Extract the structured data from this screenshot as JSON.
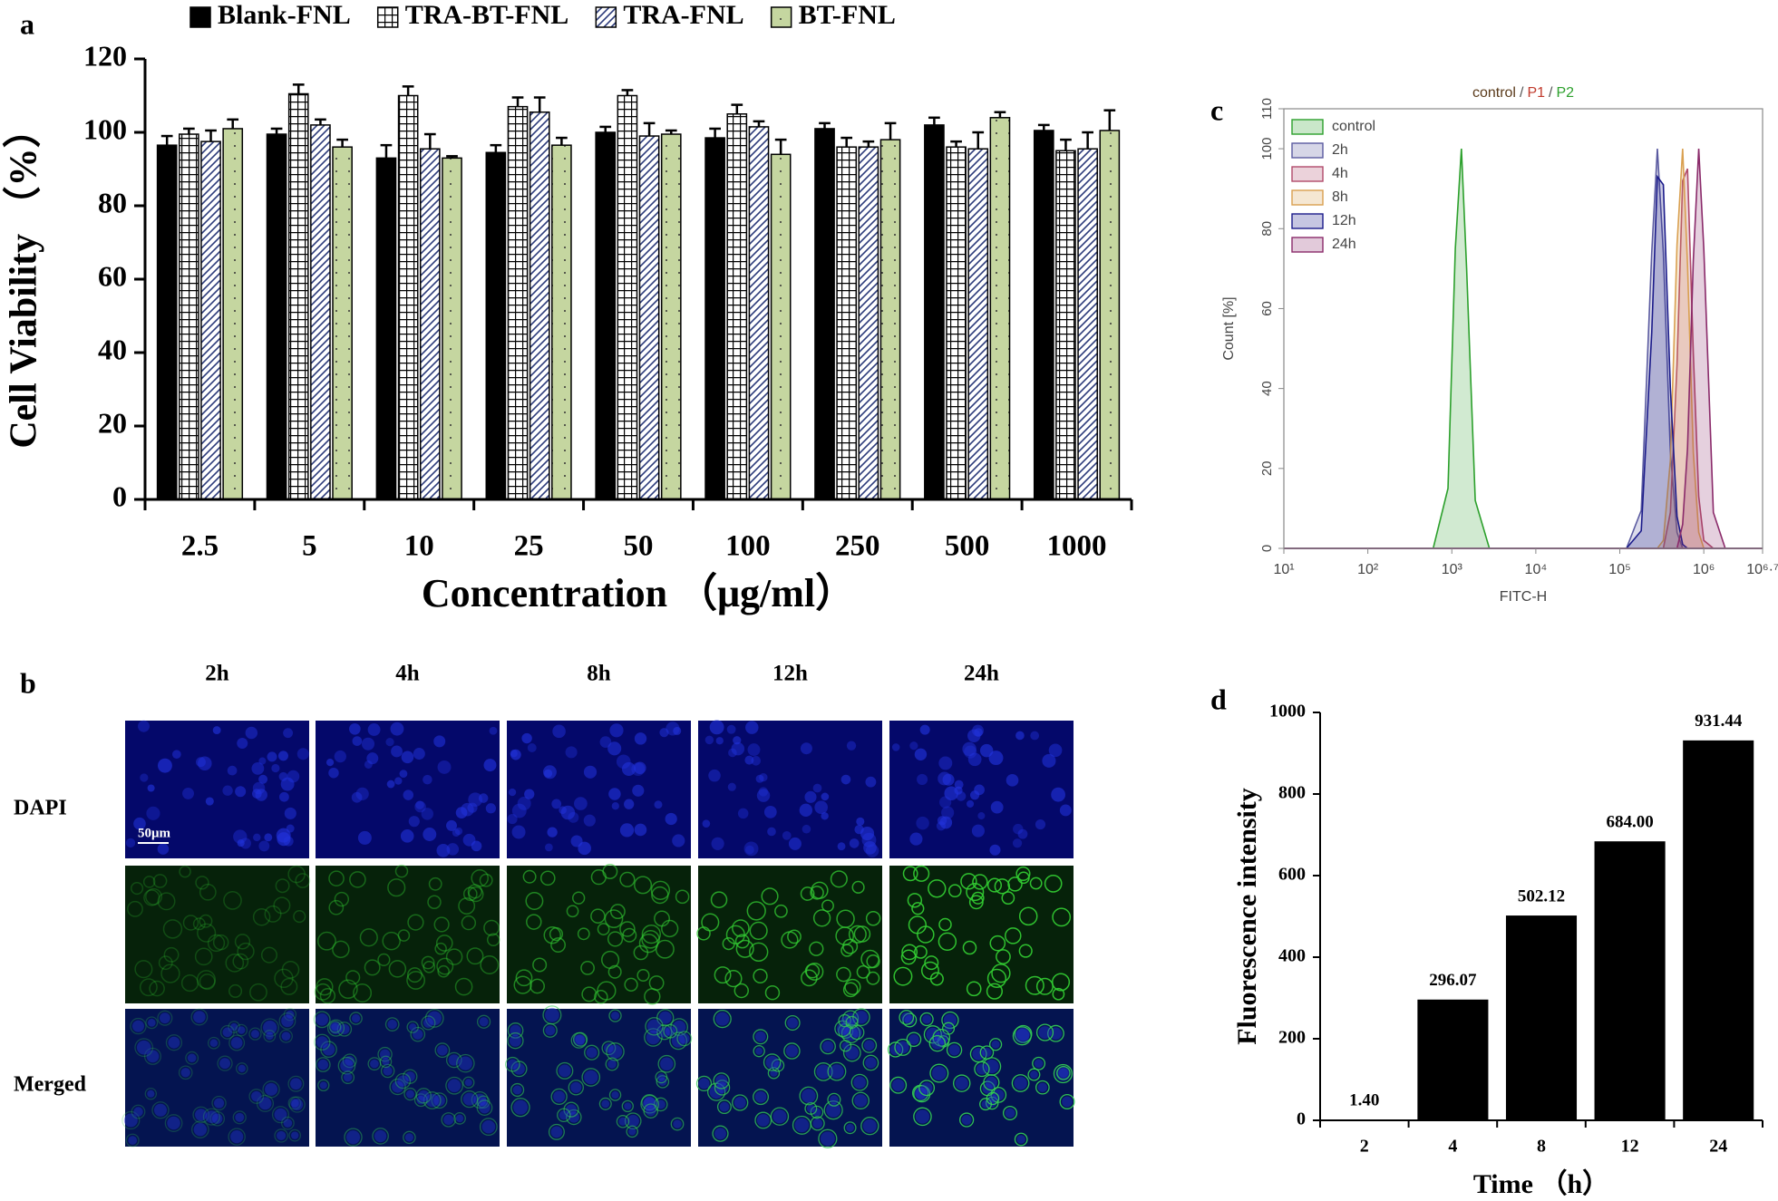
{
  "chart_data": [
    {
      "panel": "a",
      "type": "bar",
      "categories": [
        "2.5",
        "5",
        "10",
        "25",
        "50",
        "100",
        "250",
        "500",
        "1000"
      ],
      "x_label": "Concentration （μg/ml）",
      "y_label": "Cell Viability （%）",
      "ylim": [
        0,
        120
      ],
      "yticks": [
        0,
        20,
        40,
        60,
        80,
        100,
        120
      ],
      "legend": "top",
      "series": [
        {
          "name": "Blank-FNL",
          "color": "#000000",
          "pattern": "solid",
          "values": [
            96.5,
            99.5,
            93,
            94.5,
            100,
            98.5,
            101,
            102,
            100.5
          ],
          "errors": [
            2.5,
            1.5,
            3.5,
            2,
            1.5,
            2.5,
            1.5,
            2,
            1.5
          ]
        },
        {
          "name": "TRA-BT-FNL",
          "color": "#000000",
          "pattern": "grid",
          "values": [
            99.5,
            110.5,
            110,
            107,
            110,
            105,
            96,
            96,
            95
          ],
          "errors": [
            1.5,
            2.5,
            2.5,
            2.5,
            1.5,
            2.5,
            2.5,
            1.5,
            3
          ]
        },
        {
          "name": "TRA-FNL",
          "color": "#2b3a7a",
          "pattern": "hatch",
          "values": [
            97.5,
            102,
            95.5,
            105.5,
            99,
            101.5,
            96,
            95.5,
            95.5
          ],
          "errors": [
            3,
            1.5,
            4,
            4,
            3.5,
            1.5,
            1.5,
            4.5,
            4.5
          ]
        },
        {
          "name": "BT-FNL",
          "color": "#c5d6a0",
          "pattern": "dots",
          "values": [
            101,
            96,
            93,
            96.5,
            99.5,
            94,
            98,
            104,
            100.5
          ],
          "errors": [
            2.5,
            2,
            0.5,
            2,
            1,
            4,
            4.5,
            1.5,
            5.5
          ]
        }
      ]
    },
    {
      "panel": "c",
      "type": "line",
      "title": [
        "control",
        "P1",
        "P2"
      ],
      "title_colors": [
        "#5a3a1a",
        "#c0392b",
        "#2ca02c"
      ],
      "title_separator": "/",
      "x_label": "FITC-H",
      "y_label": "Count [%]",
      "x_log": true,
      "xlim": [
        10,
        5011872
      ],
      "xticks": [
        {
          "value": 10,
          "label": "10¹"
        },
        {
          "value": 100,
          "label": "10²"
        },
        {
          "value": 1000,
          "label": "10³"
        },
        {
          "value": 10000,
          "label": "10⁴"
        },
        {
          "value": 100000,
          "label": "10⁵"
        },
        {
          "value": 1000000,
          "label": "10⁶"
        },
        {
          "value": 5011872,
          "label": "10⁶·⁷"
        }
      ],
      "ylim": [
        0,
        110
      ],
      "yticks": [
        0,
        20,
        40,
        60,
        80,
        100,
        110
      ],
      "legend": "upper left",
      "x": [
        10,
        600,
        900,
        1100,
        1300,
        1500,
        1900,
        2800,
        120000,
        180000,
        240000,
        280000,
        330000,
        400000,
        480000,
        560000,
        640000,
        750000,
        870000,
        1000000,
        1300000,
        1800000,
        5011872
      ],
      "series": [
        {
          "name": "control",
          "color": "#2ca02c",
          "values": [
            0,
            0,
            15,
            75,
            100,
            70,
            12,
            0,
            0,
            0,
            0,
            0,
            0,
            0,
            0,
            0,
            0,
            0,
            0,
            0,
            0,
            0,
            0
          ]
        },
        {
          "name": "2h",
          "color": "#5a5aa0",
          "values": [
            0,
            0,
            0,
            0,
            0,
            0,
            0,
            0,
            0,
            9.5,
            74,
            100,
            74,
            24,
            4,
            0,
            0,
            0,
            0,
            0,
            0,
            0,
            0
          ]
        },
        {
          "name": "4h",
          "color": "#b04a6a",
          "values": [
            0,
            0,
            0,
            0,
            0,
            0,
            0,
            0,
            0,
            0,
            0,
            0,
            0,
            9,
            46,
            92,
            95,
            49,
            13,
            2,
            0,
            0,
            0
          ]
        },
        {
          "name": "8h",
          "color": "#d9a050",
          "values": [
            0,
            0,
            0,
            0,
            0,
            0,
            0,
            0,
            0,
            0,
            0,
            0,
            2,
            22,
            76,
            100,
            71,
            24,
            4,
            0,
            0,
            0,
            0
          ]
        },
        {
          "name": "12h",
          "color": "#1a1a8a",
          "values": [
            0,
            0,
            0,
            0,
            0,
            0,
            0,
            0,
            0,
            4.4,
            54,
            93,
            91,
            40,
            8,
            1,
            0,
            0,
            0,
            0,
            0,
            0,
            0
          ]
        },
        {
          "name": "24h",
          "color": "#8a2a6a",
          "values": [
            0,
            0,
            0,
            0,
            0,
            0,
            0,
            0,
            0,
            0,
            0,
            0,
            0,
            0,
            0,
            6,
            25,
            72,
            100,
            75,
            9,
            0,
            0
          ]
        }
      ]
    },
    {
      "panel": "d",
      "type": "bar",
      "categories": [
        "2",
        "4",
        "8",
        "12",
        "24"
      ],
      "values": [
        1.4,
        296.07,
        502.12,
        684.0,
        931.44
      ],
      "value_labels": [
        "1.40",
        "296.07",
        "502.12",
        "684.00",
        "931.44"
      ],
      "color": "#000000",
      "x_label": "Time （h）",
      "y_label": "Fluorescence intensity",
      "ylim": [
        0,
        1000
      ],
      "yticks": [
        0,
        200,
        400,
        600,
        800,
        1000
      ]
    }
  ],
  "image_panel": {
    "panel": "b",
    "columns": [
      "2h",
      "4h",
      "8h",
      "12h",
      "24h"
    ],
    "rows": [
      "DAPI",
      "Merged"
    ],
    "scale_bar": "50μm"
  }
}
